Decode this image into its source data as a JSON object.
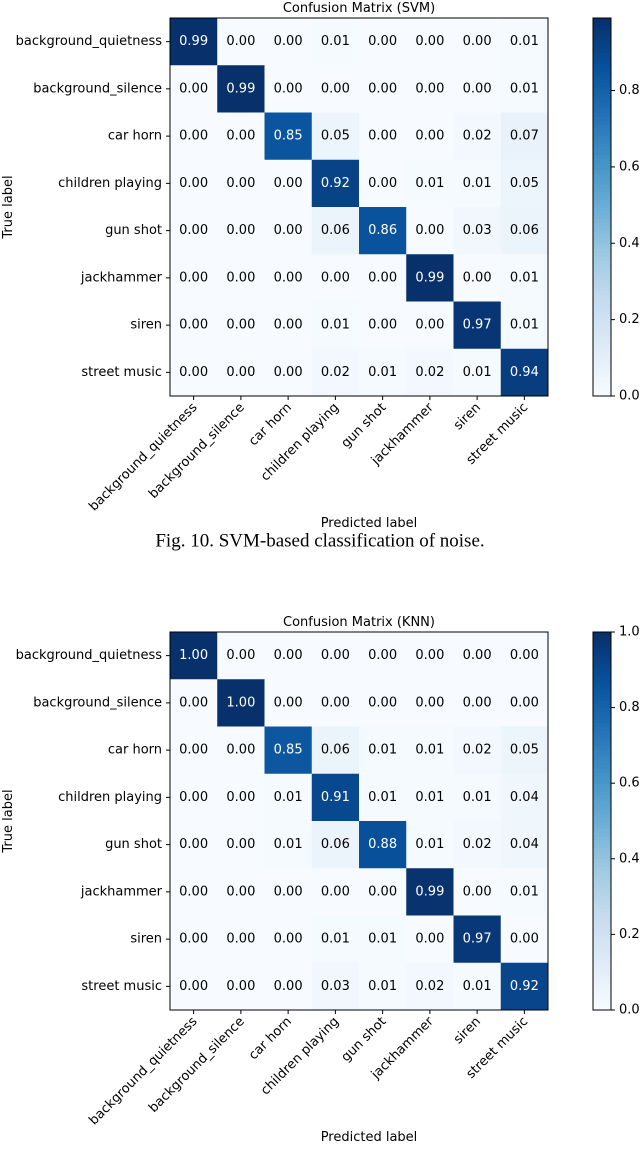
{
  "chart_data": [
    {
      "type": "heatmap",
      "title": "Confusion Matrix  (SVM)",
      "xlabel": "Predicted label",
      "ylabel": "True label",
      "caption": "Fig. 10.  SVM-based classification of noise.",
      "labels": [
        "background_quietness",
        "background_silence",
        "car horn",
        "children playing",
        "gun shot",
        "jackhammer",
        "siren",
        "street music"
      ],
      "colorbar": {
        "range": [
          0,
          0.99
        ],
        "ticks": [
          "0.0",
          "0.2",
          "0.4",
          "0.6",
          "0.8"
        ],
        "colormap": "Blues"
      },
      "values": [
        [
          0.99,
          0.0,
          0.0,
          0.01,
          0.0,
          0.0,
          0.0,
          0.01
        ],
        [
          0.0,
          0.99,
          0.0,
          0.0,
          0.0,
          0.0,
          0.0,
          0.01
        ],
        [
          0.0,
          0.0,
          0.85,
          0.05,
          0.0,
          0.0,
          0.02,
          0.07
        ],
        [
          0.0,
          0.0,
          0.0,
          0.92,
          0.0,
          0.01,
          0.01,
          0.05
        ],
        [
          0.0,
          0.0,
          0.0,
          0.06,
          0.86,
          0.0,
          0.03,
          0.06
        ],
        [
          0.0,
          0.0,
          0.0,
          0.0,
          0.0,
          0.99,
          0.0,
          0.01
        ],
        [
          0.0,
          0.0,
          0.0,
          0.01,
          0.0,
          0.0,
          0.97,
          0.01
        ],
        [
          0.0,
          0.0,
          0.0,
          0.02,
          0.01,
          0.02,
          0.01,
          0.94
        ]
      ]
    },
    {
      "type": "heatmap",
      "title": "Confusion Matrix  (KNN)",
      "xlabel": "Predicted label",
      "ylabel": "True label",
      "labels": [
        "background_quietness",
        "background_silence",
        "car horn",
        "children playing",
        "gun shot",
        "jackhammer",
        "siren",
        "street music"
      ],
      "colorbar": {
        "range": [
          0,
          1.0
        ],
        "ticks": [
          "0.0",
          "0.2",
          "0.4",
          "0.6",
          "0.8",
          "1.0"
        ],
        "colormap": "Blues"
      },
      "values": [
        [
          1.0,
          0.0,
          0.0,
          0.0,
          0.0,
          0.0,
          0.0,
          0.0
        ],
        [
          0.0,
          1.0,
          0.0,
          0.0,
          0.0,
          0.0,
          0.0,
          0.0
        ],
        [
          0.0,
          0.0,
          0.85,
          0.06,
          0.01,
          0.01,
          0.02,
          0.05
        ],
        [
          0.0,
          0.0,
          0.01,
          0.91,
          0.01,
          0.01,
          0.01,
          0.04
        ],
        [
          0.0,
          0.0,
          0.01,
          0.06,
          0.88,
          0.01,
          0.02,
          0.04
        ],
        [
          0.0,
          0.0,
          0.0,
          0.0,
          0.0,
          0.99,
          0.0,
          0.01
        ],
        [
          0.0,
          0.0,
          0.0,
          0.01,
          0.01,
          0.0,
          0.97,
          0.0
        ],
        [
          0.0,
          0.0,
          0.0,
          0.03,
          0.01,
          0.02,
          0.01,
          0.92
        ]
      ]
    }
  ]
}
